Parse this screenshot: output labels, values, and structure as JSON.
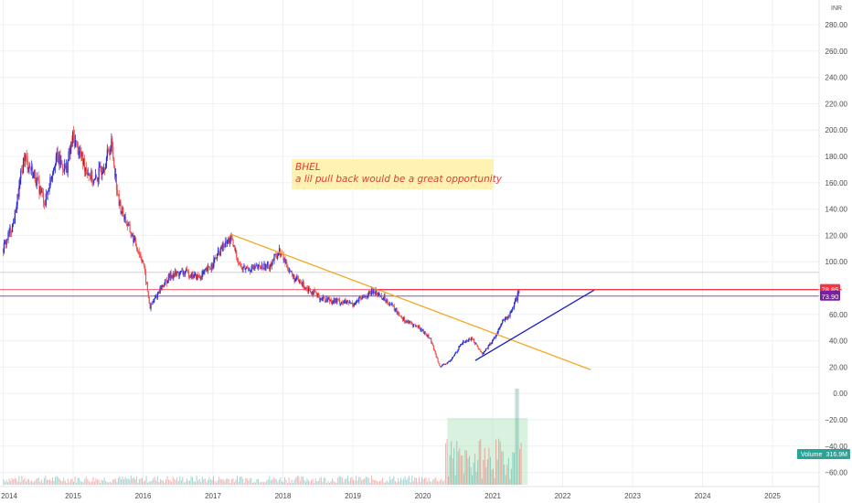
{
  "chart_data": {
    "type": "candlestick",
    "currency_label": "INR",
    "y_ticks": [
      280,
      260,
      240,
      220,
      200,
      180,
      160,
      140,
      120,
      100,
      60,
      40,
      20,
      0,
      -20,
      -40,
      -60
    ],
    "y_tick_labels": [
      "280.00",
      "260.00",
      "240.00",
      "220.00",
      "200.00",
      "180.00",
      "160.00",
      "140.00",
      "120.00",
      "100.00",
      "60.00",
      "40.00",
      "20.00",
      "0.00",
      "−20.00",
      "−40.00",
      "−60.00"
    ],
    "x_labels": [
      {
        "t": 2014.0,
        "label": "2014"
      },
      {
        "t": 2015.0,
        "label": "2015"
      },
      {
        "t": 2016.0,
        "label": "2016"
      },
      {
        "t": 2017.0,
        "label": "2017"
      },
      {
        "t": 2018.0,
        "label": "2018"
      },
      {
        "t": 2019.0,
        "label": "2019"
      },
      {
        "t": 2020.0,
        "label": "2020"
      },
      {
        "t": 2021.0,
        "label": "2021"
      },
      {
        "t": 2022.0,
        "label": "2022"
      },
      {
        "t": 2023.0,
        "label": "2023"
      },
      {
        "t": 2024.0,
        "label": "2024"
      },
      {
        "t": 2025.0,
        "label": "2025"
      }
    ],
    "price_path": [
      [
        2014.0,
        110
      ],
      [
        2014.15,
        130
      ],
      [
        2014.3,
        180
      ],
      [
        2014.45,
        165
      ],
      [
        2014.6,
        145
      ],
      [
        2014.75,
        180
      ],
      [
        2014.9,
        170
      ],
      [
        2015.0,
        195
      ],
      [
        2015.15,
        175
      ],
      [
        2015.3,
        160
      ],
      [
        2015.45,
        175
      ],
      [
        2015.55,
        190
      ],
      [
        2015.65,
        145
      ],
      [
        2015.8,
        125
      ],
      [
        2016.0,
        100
      ],
      [
        2016.1,
        65
      ],
      [
        2016.25,
        80
      ],
      [
        2016.4,
        90
      ],
      [
        2016.6,
        92
      ],
      [
        2016.8,
        88
      ],
      [
        2016.95,
        95
      ],
      [
        2017.1,
        108
      ],
      [
        2017.25,
        118
      ],
      [
        2017.4,
        95
      ],
      [
        2017.6,
        95
      ],
      [
        2017.8,
        97
      ],
      [
        2017.95,
        108
      ],
      [
        2018.15,
        88
      ],
      [
        2018.35,
        80
      ],
      [
        2018.55,
        72
      ],
      [
        2018.8,
        70
      ],
      [
        2019.0,
        68
      ],
      [
        2019.3,
        78
      ],
      [
        2019.5,
        70
      ],
      [
        2019.75,
        55
      ],
      [
        2019.95,
        50
      ],
      [
        2020.1,
        42
      ],
      [
        2020.25,
        20
      ],
      [
        2020.4,
        25
      ],
      [
        2020.55,
        38
      ],
      [
        2020.7,
        42
      ],
      [
        2020.85,
        30
      ],
      [
        2021.0,
        40
      ],
      [
        2021.15,
        55
      ],
      [
        2021.25,
        60
      ],
      [
        2021.38,
        77
      ]
    ],
    "horizontal_levels": [
      {
        "value": 78.85,
        "label": "78.85",
        "color": "#f23645"
      },
      {
        "value": 73.9,
        "label": "73.90",
        "color": "#7b1fa2"
      },
      {
        "value": 92,
        "label": "",
        "color": "#bdbdbd"
      }
    ],
    "trendlines": [
      {
        "name": "resistance",
        "color": "#f5a623",
        "points": [
          [
            2017.25,
            121
          ],
          [
            2022.4,
            18
          ]
        ]
      },
      {
        "name": "support",
        "color": "#1a1ac8",
        "points": [
          [
            2020.75,
            25
          ],
          [
            2022.45,
            78.5
          ]
        ]
      },
      {
        "name": "target",
        "color": "#f23645",
        "points": [
          [
            2019.35,
            78.85
          ],
          [
            2025.99,
            78.85
          ]
        ]
      }
    ],
    "volume": {
      "label": "Volume",
      "value_label": "316.9M",
      "highlight_range": [
        2020.35,
        2021.5
      ]
    },
    "annotation": {
      "line1": "BHEL",
      "line2": "a lil pull back would be a great opportunity"
    },
    "colors": {
      "up": "#26a69a",
      "down": "#ef5350",
      "grid": "#eef0f3",
      "highlight": "#b9e8c4"
    }
  }
}
